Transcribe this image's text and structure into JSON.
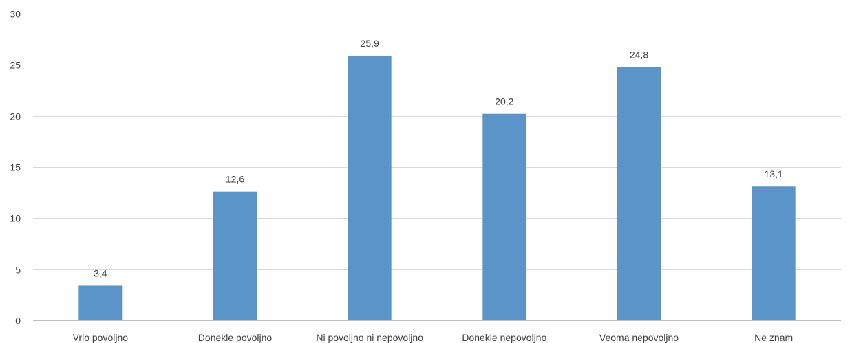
{
  "chart_data": {
    "type": "bar",
    "title": "",
    "xlabel": "",
    "ylabel": "",
    "categories": [
      "Vrlo povoljno",
      "Donekle povoljno",
      "Ni povoljno ni nepovoljno",
      "Donekle nepovoljno",
      "Veoma nepovoljno",
      "Ne znam"
    ],
    "values": [
      3.4,
      12.6,
      25.9,
      20.2,
      24.8,
      13.1
    ],
    "data_labels": [
      "3,4",
      "12,6",
      "25,9",
      "20,2",
      "24,8",
      "13,1"
    ],
    "ylim": [
      0,
      30
    ],
    "yticks": [
      0,
      5,
      10,
      15,
      20,
      25,
      30
    ],
    "grid": true,
    "legend": "none",
    "colors": {
      "bar": "#5b94c8",
      "grid": "#d9d9d9",
      "axis": "#bfbfbf",
      "text": "#404040"
    }
  }
}
